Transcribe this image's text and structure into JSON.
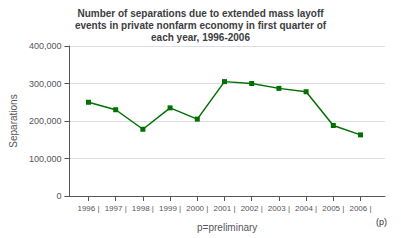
{
  "chart_data": {
    "type": "line",
    "title": "Number of separations due to extended mass layoff\nevents in private nonfarm economy in first quarter of\neach year, 1996-2006",
    "x": [
      1996,
      1997,
      1998,
      1999,
      2000,
      2001,
      2002,
      2003,
      2004,
      2005,
      2006
    ],
    "values": [
      250000,
      230000,
      178000,
      235000,
      205000,
      305000,
      300000,
      287000,
      278000,
      188000,
      163000
    ],
    "color": "#007000",
    "marker": "square",
    "xlabel": "p=preliminary",
    "ylabel": "Separations",
    "annotations": [
      "(p)"
    ],
    "xlim": [
      1995.3,
      2006.9
    ],
    "xticks": [
      {
        "value": 1996,
        "label": "1996 |"
      },
      {
        "value": 1997,
        "label": "1997 |"
      },
      {
        "value": 1998,
        "label": "1998 |"
      },
      {
        "value": 1999,
        "label": "1999 |"
      },
      {
        "value": 2000,
        "label": "2000 |"
      },
      {
        "value": 2001,
        "label": "2001 |"
      },
      {
        "value": 2002,
        "label": "2002 |"
      },
      {
        "value": 2003,
        "label": "2003 |"
      },
      {
        "value": 2004,
        "label": "2004 |"
      },
      {
        "value": 2005,
        "label": "2005 |"
      },
      {
        "value": 2006,
        "label": "2006 |"
      }
    ],
    "ylim": [
      0,
      400000
    ],
    "yticks": [
      0,
      {
        "value": 100000,
        "label": "100,000"
      },
      {
        "value": 200000,
        "label": "200,000"
      },
      {
        "value": 300000,
        "label": "300,000"
      },
      {
        "value": 400000,
        "label": "400,000"
      }
    ],
    "grid": true
  }
}
